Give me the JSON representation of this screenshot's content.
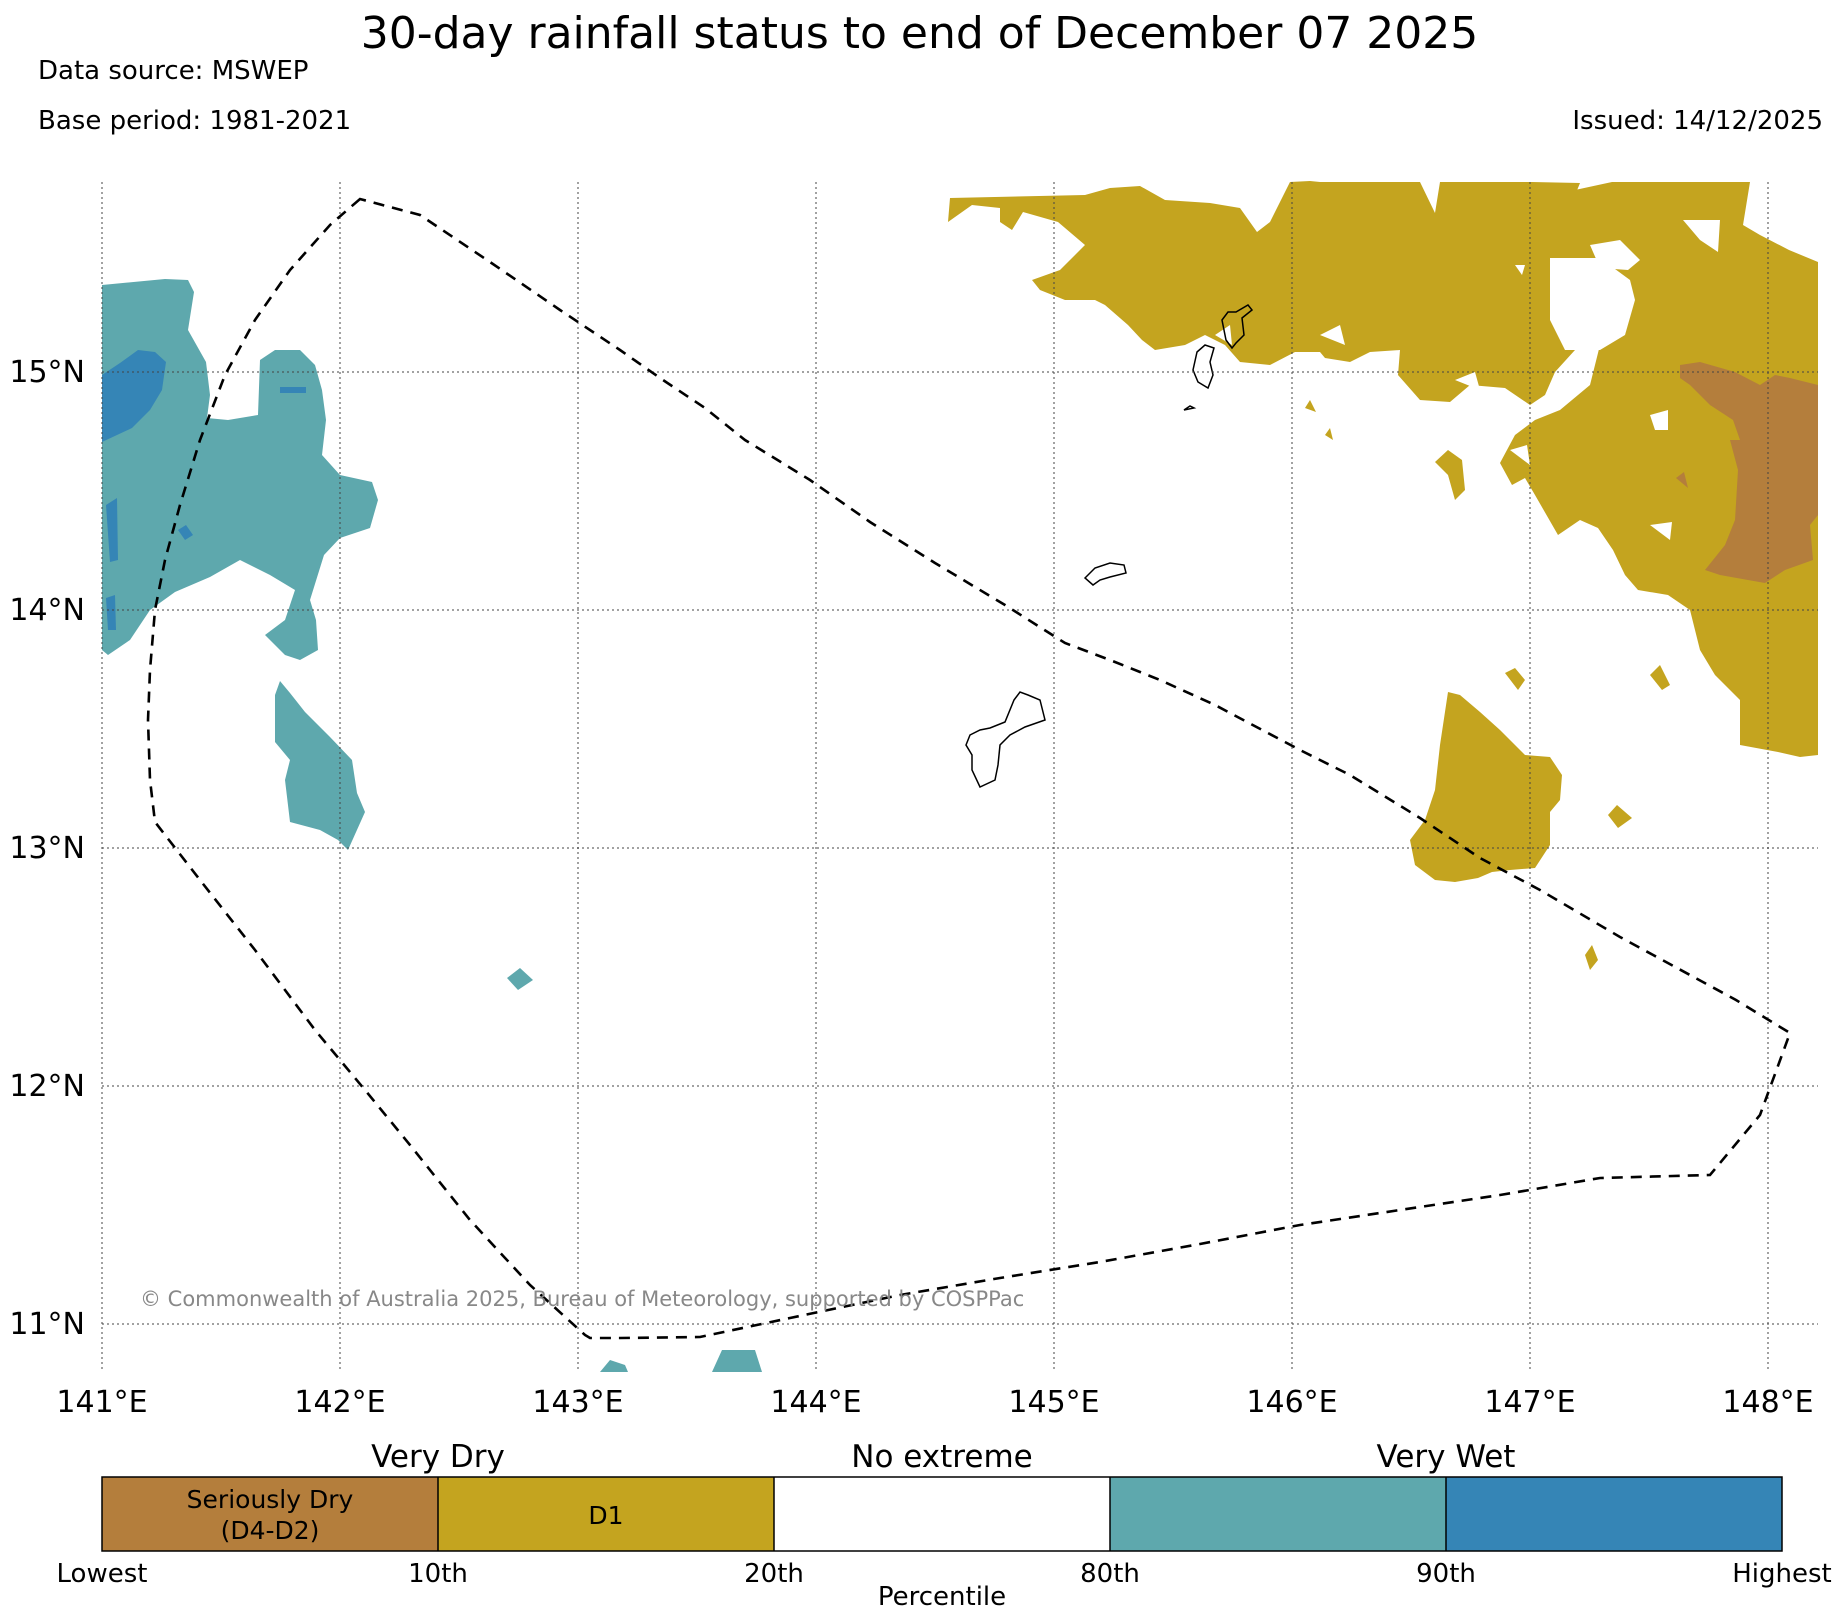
{
  "title": "30-day rainfall status to end of December 07 2025",
  "data_source": "Data source: MSWEP",
  "base_period": "Base period: 1981-2021",
  "issued": "Issued: 14/12/2025",
  "copyright": "© Commonwealth of Australia 2025, Bureau of Meteorology, supported by COSPPac",
  "map": {
    "lat_labels": [
      "15°N",
      "14°N",
      "13°N",
      "12°N",
      "11°N"
    ],
    "lon_labels": [
      "141°E",
      "142°E",
      "143°E",
      "144°E",
      "145°E",
      "146°E",
      "147°E",
      "148°E"
    ]
  },
  "legend": {
    "categories": [
      "Very Dry",
      "No extreme",
      "Very Wet"
    ],
    "segments": [
      {
        "label_line1": "Seriously Dry",
        "label_line2": "(D4-D2)",
        "color": "#b47e3c"
      },
      {
        "label_line1": "D1",
        "label_line2": "",
        "color": "#c4a41f"
      },
      {
        "label_line1": "",
        "label_line2": "",
        "color": "#ffffff"
      },
      {
        "label_line1": "",
        "label_line2": "",
        "color": "#5ea8ad"
      },
      {
        "label_line1": "",
        "label_line2": "",
        "color": "#3585b6"
      }
    ],
    "percentiles": [
      "Lowest",
      "10th",
      "20th",
      "80th",
      "90th",
      "Highest"
    ],
    "axis_label": "Percentile"
  },
  "colors": {
    "seriously_dry": "#b47e3c",
    "d1": "#c4a41f",
    "no_extreme": "#ffffff",
    "very_wet": "#5ea8ad",
    "highest_wet": "#3585b6"
  }
}
